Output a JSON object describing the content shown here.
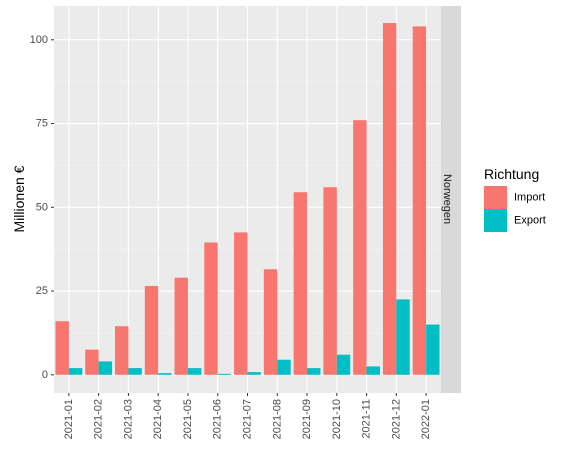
{
  "chart_data": {
    "type": "bar",
    "facet_label": "Norwegen",
    "ylabel": "Millionen €",
    "xlabel": "",
    "ylim": [
      0,
      110
    ],
    "yticks": [
      0,
      25,
      50,
      75,
      100
    ],
    "categories": [
      "2021-01",
      "2021-02",
      "2021-03",
      "2021-04",
      "2021-05",
      "2021-06",
      "2021-07",
      "2021-08",
      "2021-09",
      "2021-10",
      "2021-11",
      "2021-12",
      "2022-01"
    ],
    "legend": {
      "title": "Richtung",
      "position": "right"
    },
    "grid": true,
    "series": [
      {
        "name": "Import",
        "color": "#F8766D",
        "values": [
          16,
          7.5,
          14.5,
          26.5,
          29,
          39.5,
          42.5,
          31.5,
          54.5,
          56,
          76,
          105,
          104
        ]
      },
      {
        "name": "Export",
        "color": "#00BFC4",
        "values": [
          2,
          4,
          2,
          0.5,
          2,
          0.3,
          0.8,
          4.5,
          2,
          6,
          2.5,
          22.5,
          15
        ]
      }
    ]
  }
}
